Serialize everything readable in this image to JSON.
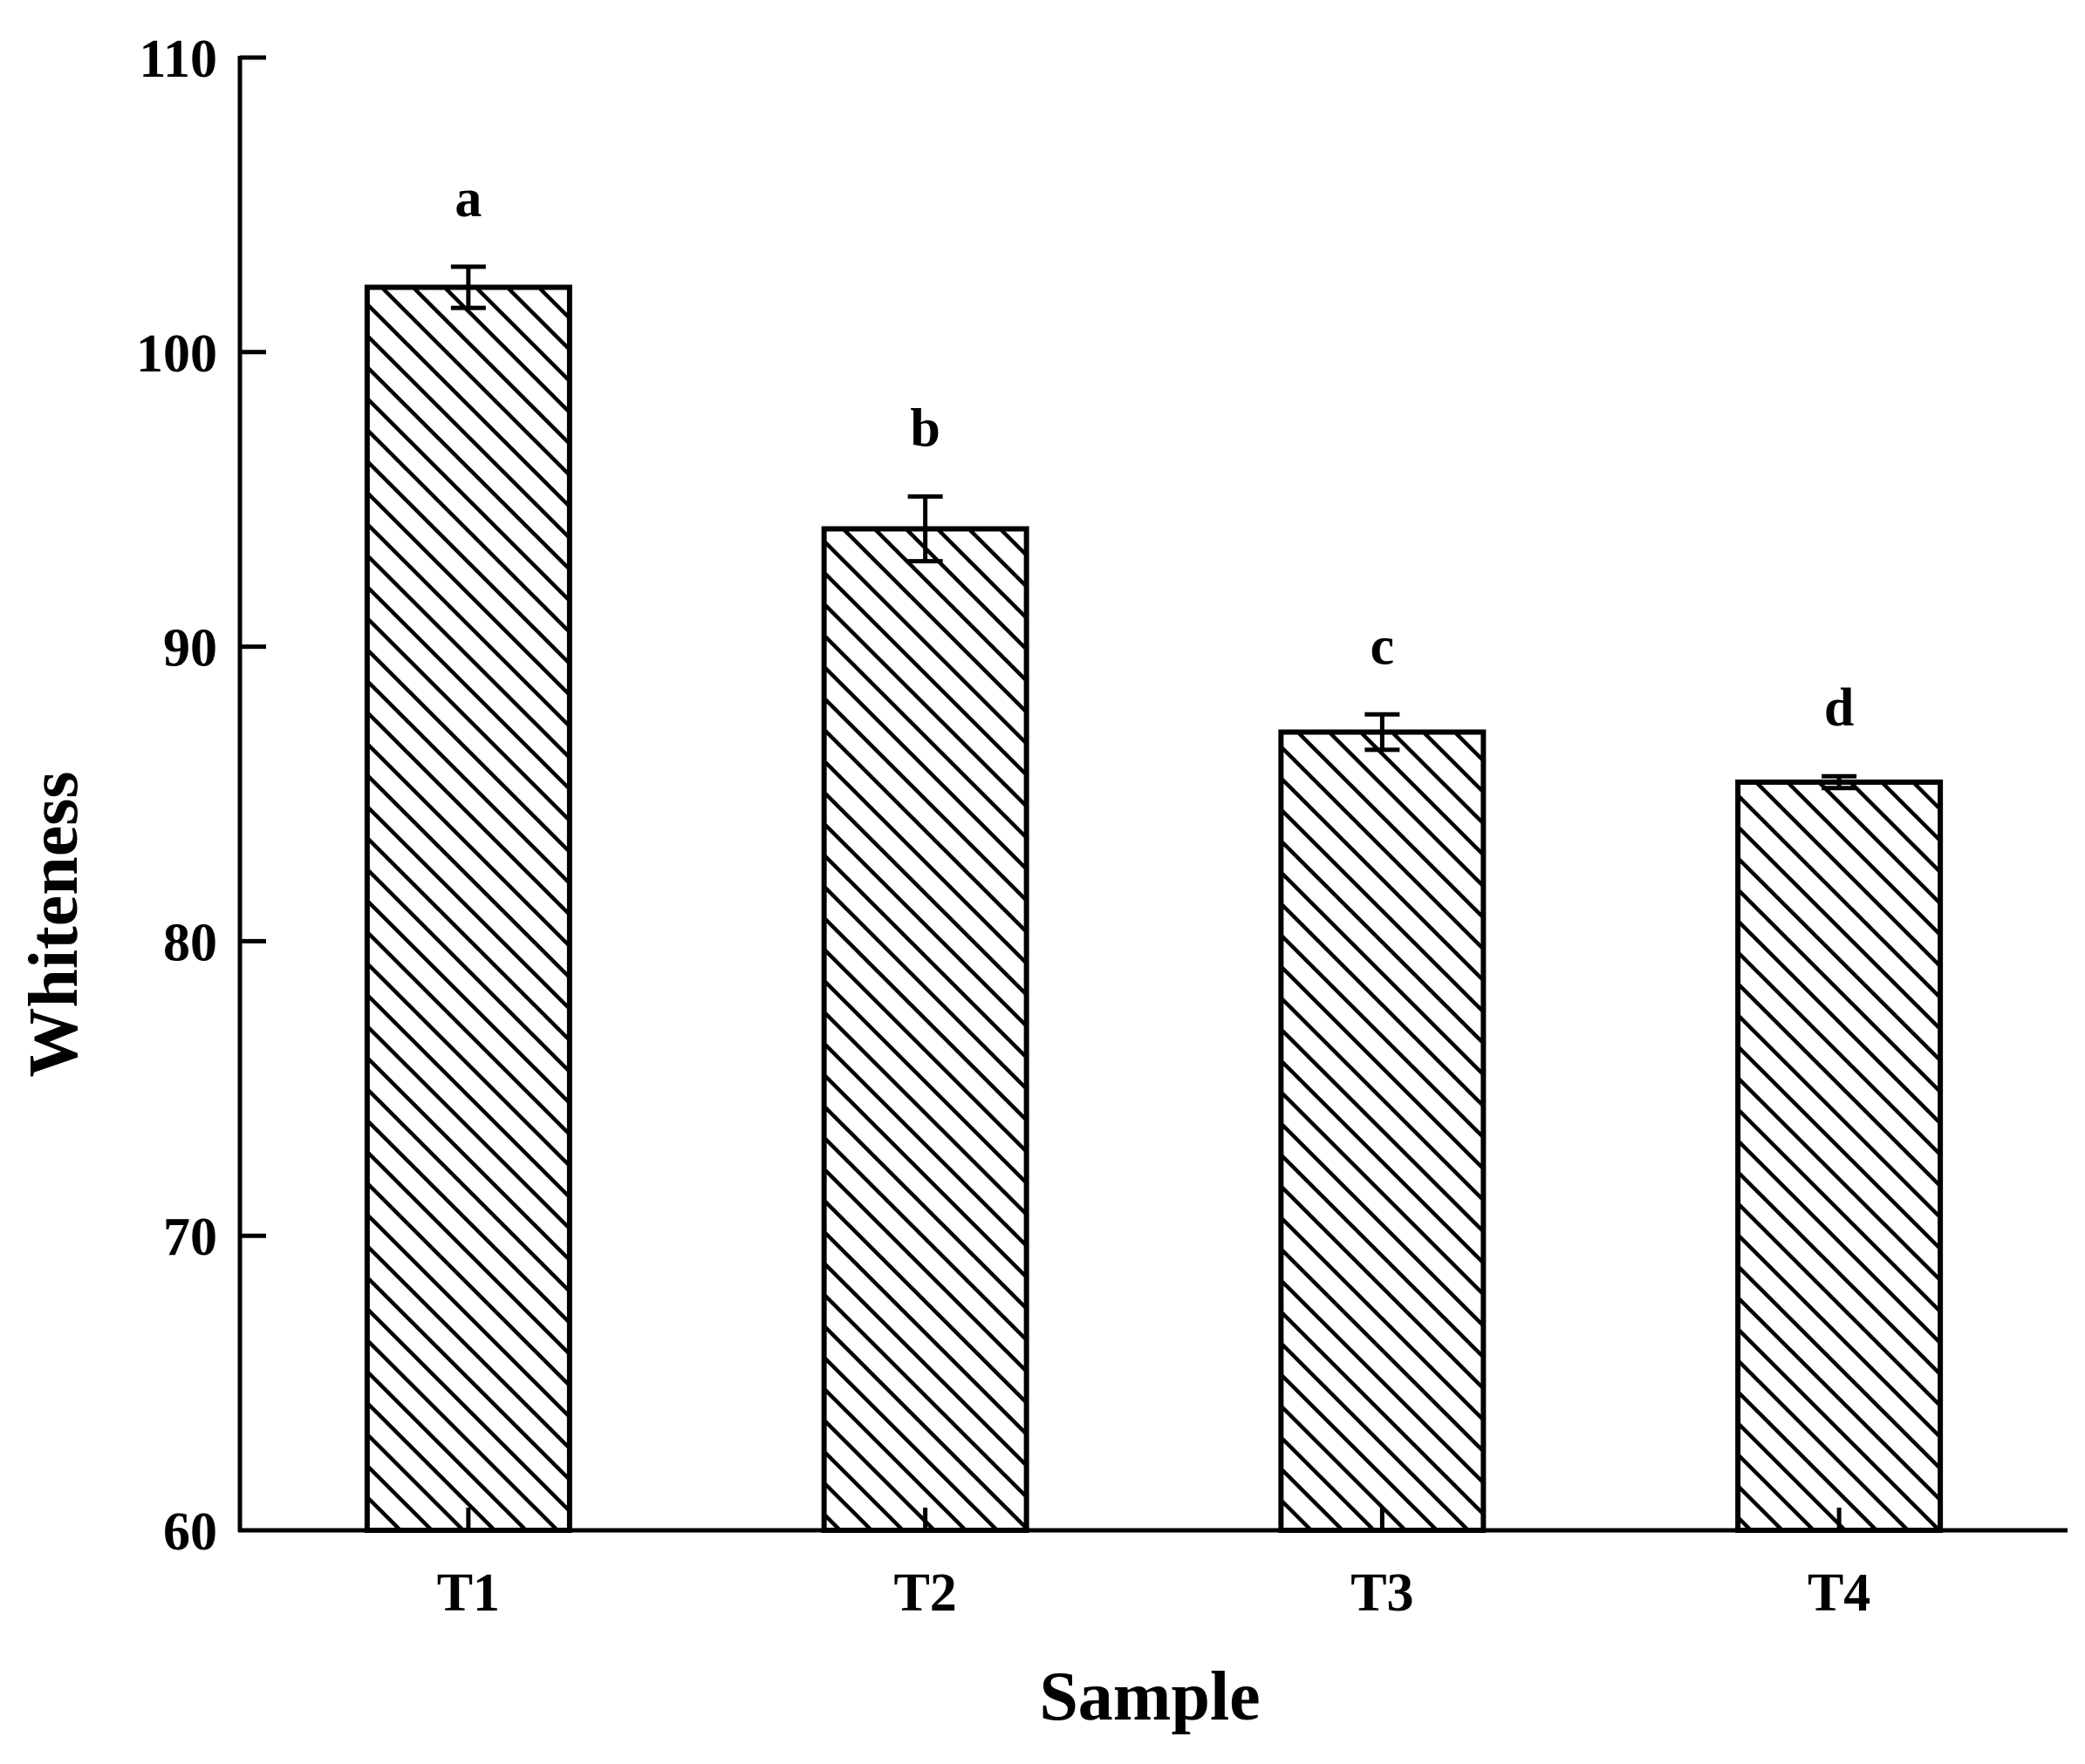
{
  "chart_data": {
    "type": "bar",
    "xlabel": "Sample",
    "ylabel": "Whiteness",
    "ylim": [
      60,
      110
    ],
    "yticks": [
      "60",
      "70",
      "80",
      "90",
      "100",
      "110"
    ],
    "categories": [
      "T1",
      "T2",
      "T3",
      "T4"
    ],
    "values": [
      102.2,
      94.0,
      87.1,
      85.4
    ],
    "errors": [
      0.7,
      1.1,
      0.6,
      0.2
    ],
    "significance_letters": [
      "a",
      "b",
      "c",
      "d"
    ],
    "bar_fill": "diagonal hatch",
    "colors": {
      "line": "#000000",
      "background": "#ffffff"
    },
    "grid": false,
    "legend": "none"
  }
}
